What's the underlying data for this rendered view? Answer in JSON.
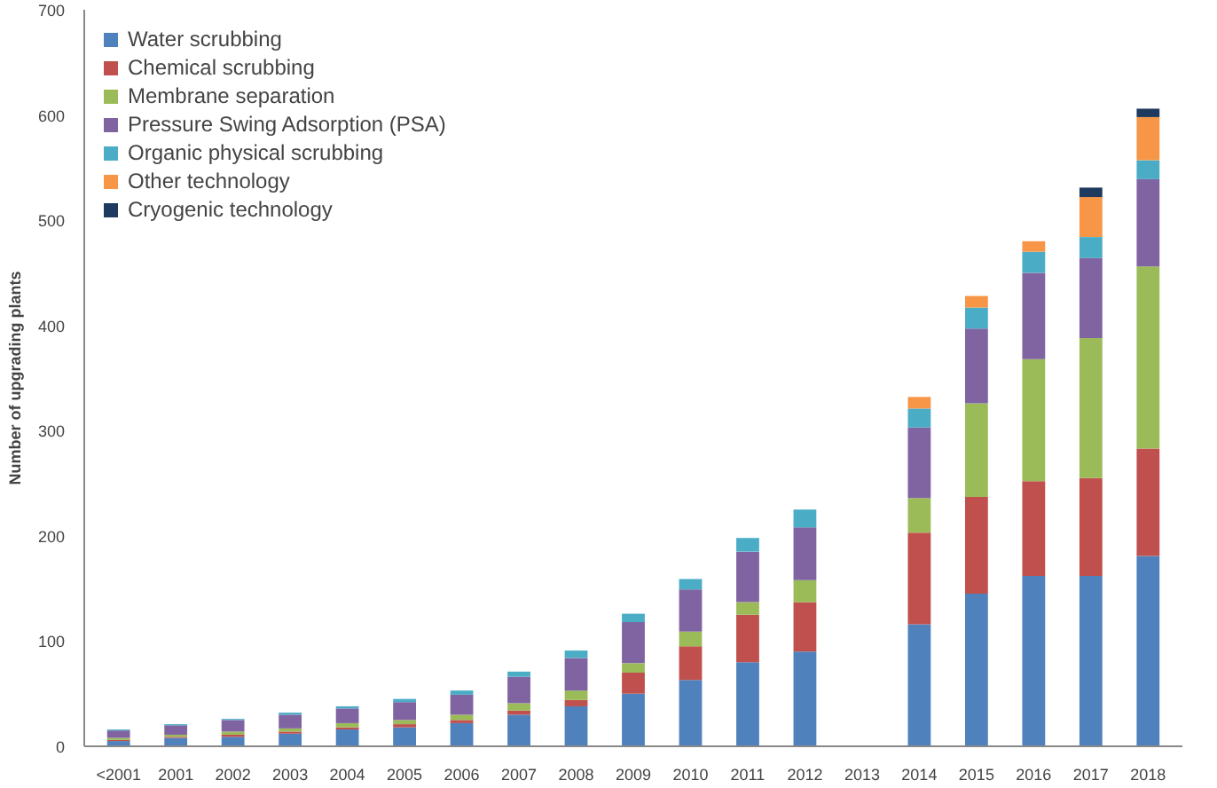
{
  "chart_data": {
    "type": "bar",
    "stacked": true,
    "ylabel": "Number of upgrading plants",
    "categories": [
      "<2001",
      "2001",
      "2002",
      "2003",
      "2004",
      "2005",
      "2006",
      "2007",
      "2008",
      "2009",
      "2010",
      "2011",
      "2012",
      "2013",
      "2014",
      "2015",
      "2016",
      "2017",
      "2018"
    ],
    "series": [
      {
        "name": "Water scrubbing",
        "color": "#4f81bd",
        "values": [
          5,
          8,
          9,
          12,
          16,
          18,
          22,
          30,
          38,
          50,
          63,
          80,
          90,
          0,
          116,
          145,
          162,
          162,
          181
        ]
      },
      {
        "name": "Chemical scrubbing",
        "color": "#c0504d",
        "values": [
          1,
          1,
          2,
          2,
          2,
          3,
          3,
          4,
          6,
          20,
          32,
          45,
          47,
          0,
          87,
          92,
          90,
          93,
          102
        ]
      },
      {
        "name": "Membrane separation",
        "color": "#9bbb59",
        "values": [
          2,
          2,
          3,
          3,
          4,
          4,
          5,
          7,
          9,
          9,
          14,
          12,
          21,
          0,
          33,
          89,
          116,
          133,
          173
        ]
      },
      {
        "name": "Pressure Swing Adsorption (PSA)",
        "color": "#8064a2",
        "values": [
          7,
          9,
          11,
          13,
          14,
          17,
          19,
          25,
          31,
          39,
          40,
          48,
          50,
          0,
          67,
          71,
          82,
          76,
          83
        ]
      },
      {
        "name": "Organic physical scrubbing",
        "color": "#4bacc6",
        "values": [
          1,
          1,
          1,
          2,
          2,
          3,
          4,
          5,
          7,
          8,
          10,
          13,
          17,
          0,
          18,
          20,
          20,
          20,
          18
        ]
      },
      {
        "name": "Other technology",
        "color": "#f79646",
        "values": [
          0,
          0,
          0,
          0,
          0,
          0,
          0,
          0,
          0,
          0,
          0,
          0,
          0,
          0,
          11,
          11,
          10,
          38,
          41
        ]
      },
      {
        "name": "Cryogenic technology",
        "color": "#1f3a5f",
        "values": [
          0,
          0,
          0,
          0,
          0,
          0,
          0,
          0,
          0,
          0,
          0,
          0,
          0,
          0,
          0,
          0,
          0,
          9,
          8
        ]
      }
    ],
    "ylim": [
      0,
      700
    ],
    "yticks": [
      0,
      100,
      200,
      300,
      400,
      500,
      600,
      700
    ],
    "grid": false,
    "legend": "top left"
  }
}
